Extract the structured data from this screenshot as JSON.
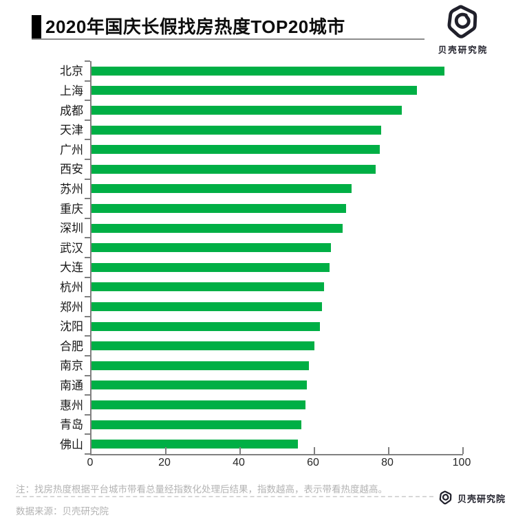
{
  "header": {
    "title": "2020年国庆长假找房热度TOP20城市",
    "brand": "贝壳研究院"
  },
  "chart_data": {
    "type": "bar",
    "orientation": "horizontal",
    "title": "2020年国庆长假找房热度TOP20城市",
    "categories": [
      "北京",
      "上海",
      "成都",
      "天津",
      "广州",
      "西安",
      "苏州",
      "重庆",
      "深圳",
      "武汉",
      "大连",
      "杭州",
      "郑州",
      "沈阳",
      "合肥",
      "南京",
      "南通",
      "惠州",
      "青岛",
      "佛山"
    ],
    "values": [
      95,
      87.5,
      83.5,
      78,
      77.5,
      76.5,
      70,
      68.5,
      67.5,
      64.5,
      64,
      62.5,
      62,
      61.5,
      60,
      58.5,
      58,
      57.5,
      56.5,
      55.5
    ],
    "xlabel": "",
    "ylabel": "",
    "xlim": [
      0,
      100
    ],
    "x_ticks": [
      0,
      20,
      40,
      60,
      80,
      100
    ],
    "grid": false,
    "legend": null,
    "bar_color": "#00af45",
    "axis_color": "#7f7f7f"
  },
  "footer": {
    "note": "注：找房热度根据平台城市带看总量经指数化处理后结果，指数越高，表示带看热度越高。",
    "source": "数据来源：贝壳研究院",
    "brand": "贝壳研究院"
  }
}
